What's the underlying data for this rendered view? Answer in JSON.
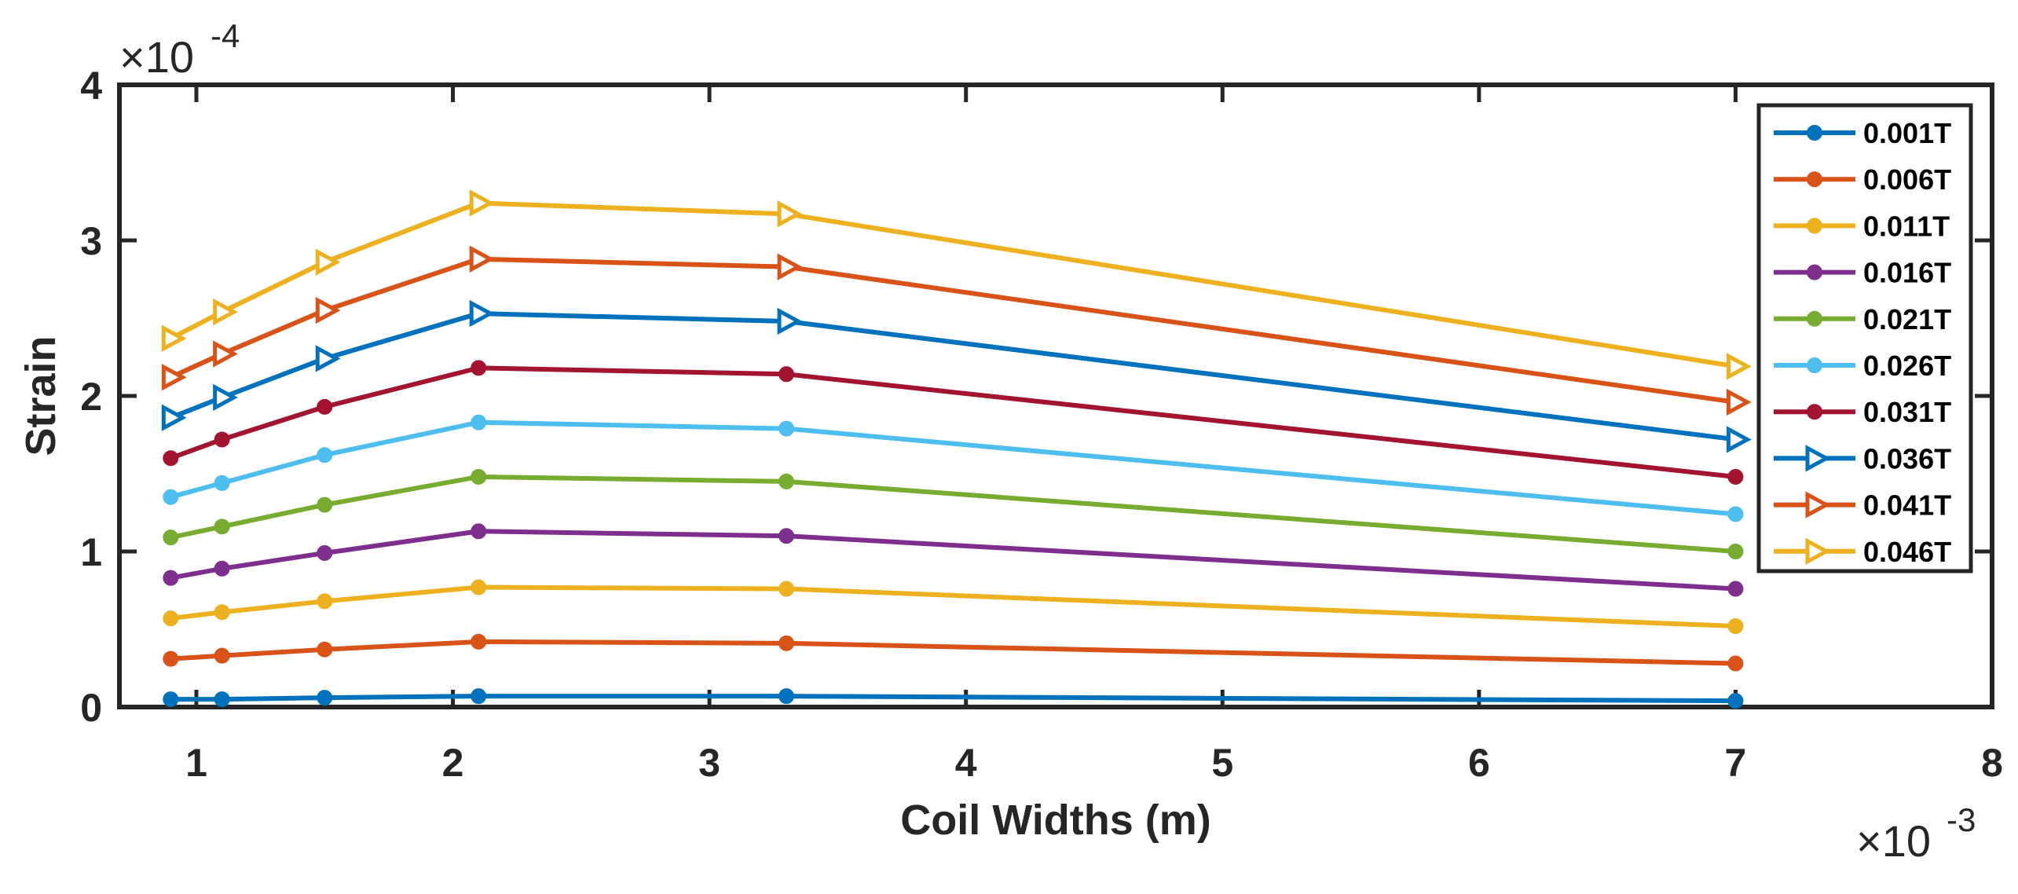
{
  "chart_data": {
    "type": "line",
    "title": "",
    "xlabel": "Coil Widths (m)",
    "ylabel": "Strain",
    "x_multiplier": "10",
    "x_exponent": "-3",
    "y_multiplier": "10",
    "y_exponent": "-4",
    "x_ticks": [
      "1",
      "2",
      "3",
      "4",
      "5",
      "6",
      "7",
      "8"
    ],
    "y_ticks": [
      "0",
      "1",
      "2",
      "3",
      "4"
    ],
    "xlim": [
      0.7,
      8
    ],
    "ylim": [
      0,
      4
    ],
    "grid": false,
    "legend_position": "top-right",
    "x": [
      0.9,
      1.1,
      1.5,
      2.1,
      3.3,
      7.0
    ],
    "series": [
      {
        "name": "0.001T",
        "color": "#0072BD",
        "marker": "circle",
        "values": [
          0.05,
          0.05,
          0.06,
          0.07,
          0.07,
          0.04
        ]
      },
      {
        "name": "0.006T",
        "color": "#D95319",
        "marker": "circle",
        "values": [
          0.31,
          0.33,
          0.37,
          0.42,
          0.41,
          0.28
        ]
      },
      {
        "name": "0.011T",
        "color": "#EDB120",
        "marker": "circle",
        "values": [
          0.57,
          0.61,
          0.68,
          0.77,
          0.76,
          0.52
        ]
      },
      {
        "name": "0.016T",
        "color": "#7E2F8E",
        "marker": "circle",
        "values": [
          0.83,
          0.89,
          0.99,
          1.13,
          1.1,
          0.76
        ]
      },
      {
        "name": "0.021T",
        "color": "#77AC30",
        "marker": "circle",
        "values": [
          1.09,
          1.16,
          1.3,
          1.48,
          1.45,
          1.0
        ]
      },
      {
        "name": "0.026T",
        "color": "#4DBEEE",
        "marker": "circle",
        "values": [
          1.35,
          1.44,
          1.62,
          1.83,
          1.79,
          1.24
        ]
      },
      {
        "name": "0.031T",
        "color": "#A2142F",
        "marker": "circle",
        "values": [
          1.6,
          1.72,
          1.93,
          2.18,
          2.14,
          1.48
        ]
      },
      {
        "name": "0.036T",
        "color": "#0072BD",
        "marker": "triangle",
        "values": [
          1.86,
          1.99,
          2.24,
          2.53,
          2.48,
          1.72
        ]
      },
      {
        "name": "0.041T",
        "color": "#D95319",
        "marker": "triangle",
        "values": [
          2.12,
          2.27,
          2.55,
          2.88,
          2.83,
          1.96
        ]
      },
      {
        "name": "0.046T",
        "color": "#EDB120",
        "marker": "triangle",
        "values": [
          2.37,
          2.54,
          2.86,
          3.24,
          3.17,
          2.19
        ]
      }
    ]
  }
}
